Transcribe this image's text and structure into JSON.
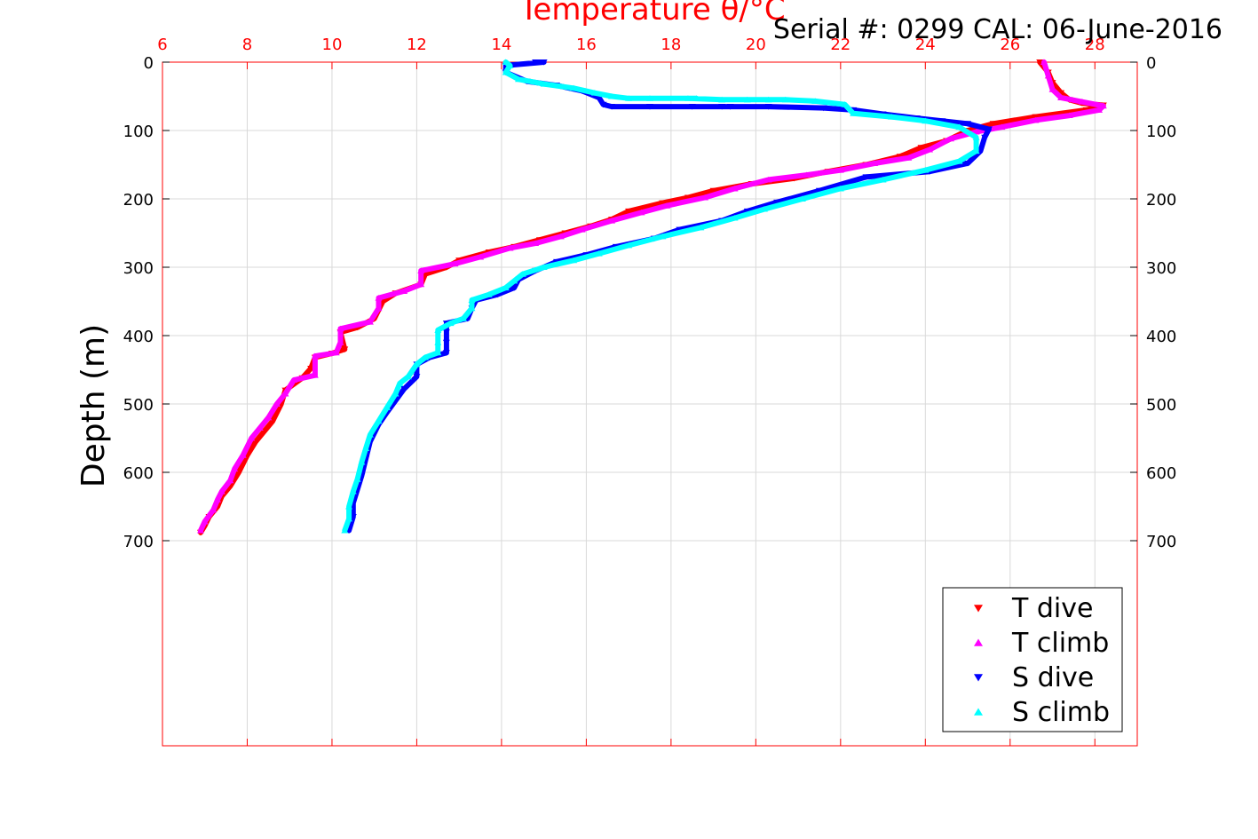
{
  "serial_text": "Serial #: 0299 CAL: 06-June-2016",
  "colors": {
    "temperature_axis": "#ff0000",
    "grid": "#d9d9d9",
    "t_dive": "#ff0000",
    "t_climb": "#ff00ff",
    "s_dive": "#0000ff",
    "s_climb": "#00ffff"
  },
  "chart_data": {
    "type": "scatter",
    "title": "Temperature θ/°C",
    "xlabel": "Temperature θ/°C",
    "ylabel": "Depth (m)",
    "xlim": [
      6,
      29
    ],
    "ylim": [
      0,
      1000
    ],
    "y_reversed": true,
    "x_ticks": [
      "6",
      "8",
      "10",
      "12",
      "14",
      "16",
      "18",
      "20",
      "22",
      "24",
      "26",
      "28"
    ],
    "y_ticks": [
      "0",
      "100",
      "200",
      "300",
      "400",
      "500",
      "600",
      "700"
    ],
    "grid": true,
    "legend_position": "bottom-right",
    "series": [
      {
        "name": "T dive",
        "marker": "triangle-down",
        "points": [
          [
            26.7,
            0
          ],
          [
            26.9,
            15
          ],
          [
            27.0,
            30
          ],
          [
            27.2,
            45
          ],
          [
            27.4,
            55
          ],
          [
            27.7,
            60
          ],
          [
            28.2,
            63
          ],
          [
            27.8,
            70
          ],
          [
            26.6,
            80
          ],
          [
            25.6,
            90
          ],
          [
            25.0,
            100
          ],
          [
            24.5,
            115
          ],
          [
            23.9,
            125
          ],
          [
            23.4,
            138
          ],
          [
            22.6,
            150
          ],
          [
            21.7,
            160
          ],
          [
            20.9,
            170
          ],
          [
            19.9,
            178
          ],
          [
            19.0,
            188
          ],
          [
            18.4,
            198
          ],
          [
            17.8,
            206
          ],
          [
            17.0,
            218
          ],
          [
            16.6,
            230
          ],
          [
            16.1,
            240
          ],
          [
            15.5,
            250
          ],
          [
            14.9,
            260
          ],
          [
            14.3,
            270
          ],
          [
            13.7,
            278
          ],
          [
            13.0,
            290
          ],
          [
            12.7,
            300
          ],
          [
            12.2,
            310
          ],
          [
            12.1,
            325
          ],
          [
            11.5,
            338
          ],
          [
            11.2,
            350
          ],
          [
            11.0,
            375
          ],
          [
            10.6,
            388
          ],
          [
            10.2,
            395
          ],
          [
            10.3,
            420
          ],
          [
            10.0,
            426
          ],
          [
            9.6,
            432
          ],
          [
            9.5,
            448
          ],
          [
            9.3,
            462
          ],
          [
            8.9,
            480
          ],
          [
            8.8,
            500
          ],
          [
            8.6,
            525
          ],
          [
            8.4,
            540
          ],
          [
            8.2,
            555
          ],
          [
            8.0,
            575
          ],
          [
            7.8,
            600
          ],
          [
            7.6,
            620
          ],
          [
            7.4,
            635
          ],
          [
            7.3,
            650
          ],
          [
            7.1,
            665
          ],
          [
            7.0,
            678
          ],
          [
            6.9,
            688
          ]
        ]
      },
      {
        "name": "T climb",
        "marker": "triangle-up",
        "points": [
          [
            6.9,
            685
          ],
          [
            7.0,
            672
          ],
          [
            7.2,
            655
          ],
          [
            7.3,
            640
          ],
          [
            7.4,
            628
          ],
          [
            7.6,
            612
          ],
          [
            7.7,
            595
          ],
          [
            7.9,
            575
          ],
          [
            8.1,
            550
          ],
          [
            8.3,
            535
          ],
          [
            8.5,
            520
          ],
          [
            8.7,
            500
          ],
          [
            8.9,
            485
          ],
          [
            9.1,
            465
          ],
          [
            9.6,
            458
          ],
          [
            9.6,
            430
          ],
          [
            10.1,
            425
          ],
          [
            10.2,
            410
          ],
          [
            10.2,
            390
          ],
          [
            10.9,
            380
          ],
          [
            11.1,
            360
          ],
          [
            11.1,
            345
          ],
          [
            11.7,
            335
          ],
          [
            12.1,
            325
          ],
          [
            12.1,
            305
          ],
          [
            12.9,
            295
          ],
          [
            13.5,
            285
          ],
          [
            14.2,
            272
          ],
          [
            14.8,
            265
          ],
          [
            15.4,
            255
          ],
          [
            15.9,
            245
          ],
          [
            16.6,
            232
          ],
          [
            17.3,
            220
          ],
          [
            17.9,
            210
          ],
          [
            18.8,
            198
          ],
          [
            19.5,
            185
          ],
          [
            20.3,
            172
          ],
          [
            21.2,
            165
          ],
          [
            22.0,
            158
          ],
          [
            22.8,
            148
          ],
          [
            23.6,
            140
          ],
          [
            24.1,
            128
          ],
          [
            24.6,
            112
          ],
          [
            25.2,
            102
          ],
          [
            25.8,
            95
          ],
          [
            26.6,
            85
          ],
          [
            27.4,
            78
          ],
          [
            28.1,
            70
          ],
          [
            28.2,
            64
          ],
          [
            27.7,
            58
          ],
          [
            27.2,
            52
          ],
          [
            27.0,
            40
          ],
          [
            26.9,
            20
          ],
          [
            26.8,
            0
          ]
        ]
      },
      {
        "name": "S dive",
        "marker": "triangle-down",
        "points": [
          [
            14.8,
            0
          ],
          [
            15.0,
            0
          ],
          [
            14.1,
            5
          ],
          [
            14.1,
            15
          ],
          [
            14.6,
            28
          ],
          [
            15.3,
            34
          ],
          [
            15.9,
            42
          ],
          [
            16.3,
            52
          ],
          [
            16.4,
            62
          ],
          [
            16.6,
            65
          ],
          [
            17.5,
            65
          ],
          [
            18.5,
            65
          ],
          [
            19.2,
            65
          ],
          [
            19.4,
            65
          ],
          [
            20.3,
            65
          ],
          [
            21.6,
            67
          ],
          [
            22.3,
            70
          ],
          [
            23.0,
            76
          ],
          [
            23.8,
            82
          ],
          [
            24.4,
            86
          ],
          [
            25.0,
            90
          ],
          [
            25.5,
            98
          ],
          [
            25.4,
            110
          ],
          [
            25.3,
            130
          ],
          [
            25.0,
            148
          ],
          [
            24.1,
            160
          ],
          [
            22.6,
            168
          ],
          [
            21.5,
            188
          ],
          [
            20.5,
            205
          ],
          [
            19.8,
            218
          ],
          [
            19.2,
            232
          ],
          [
            18.2,
            245
          ],
          [
            17.6,
            258
          ],
          [
            16.7,
            270
          ],
          [
            16.0,
            282
          ],
          [
            15.3,
            292
          ],
          [
            14.8,
            305
          ],
          [
            14.4,
            318
          ],
          [
            14.3,
            330
          ],
          [
            13.9,
            340
          ],
          [
            13.4,
            348
          ],
          [
            13.3,
            360
          ],
          [
            13.2,
            375
          ],
          [
            12.7,
            382
          ],
          [
            12.7,
            395
          ],
          [
            12.7,
            410
          ],
          [
            12.7,
            425
          ],
          [
            12.3,
            432
          ],
          [
            12.0,
            442
          ],
          [
            12.0,
            460
          ],
          [
            11.7,
            478
          ],
          [
            11.5,
            495
          ],
          [
            11.3,
            512
          ],
          [
            11.1,
            530
          ],
          [
            10.9,
            555
          ],
          [
            10.8,
            580
          ],
          [
            10.7,
            605
          ],
          [
            10.6,
            625
          ],
          [
            10.5,
            645
          ],
          [
            10.5,
            665
          ],
          [
            10.4,
            685
          ]
        ]
      },
      {
        "name": "S climb",
        "marker": "triangle-up",
        "points": [
          [
            10.3,
            685
          ],
          [
            10.4,
            668
          ],
          [
            10.4,
            650
          ],
          [
            10.5,
            628
          ],
          [
            10.6,
            610
          ],
          [
            10.7,
            585
          ],
          [
            10.8,
            565
          ],
          [
            10.9,
            545
          ],
          [
            11.1,
            525
          ],
          [
            11.3,
            505
          ],
          [
            11.5,
            485
          ],
          [
            11.6,
            470
          ],
          [
            11.8,
            460
          ],
          [
            12.0,
            442
          ],
          [
            12.2,
            432
          ],
          [
            12.5,
            425
          ],
          [
            12.5,
            410
          ],
          [
            12.5,
            392
          ],
          [
            12.8,
            382
          ],
          [
            13.1,
            375
          ],
          [
            13.3,
            360
          ],
          [
            13.3,
            348
          ],
          [
            13.7,
            340
          ],
          [
            14.1,
            330
          ],
          [
            14.3,
            320
          ],
          [
            14.5,
            310
          ],
          [
            15.0,
            300
          ],
          [
            15.7,
            290
          ],
          [
            16.3,
            280
          ],
          [
            17.0,
            268
          ],
          [
            17.8,
            255
          ],
          [
            18.7,
            242
          ],
          [
            19.5,
            228
          ],
          [
            20.2,
            215
          ],
          [
            21.1,
            200
          ],
          [
            22.0,
            185
          ],
          [
            23.0,
            172
          ],
          [
            24.0,
            158
          ],
          [
            24.8,
            145
          ],
          [
            25.2,
            130
          ],
          [
            25.2,
            110
          ],
          [
            24.8,
            95
          ],
          [
            24.0,
            86
          ],
          [
            23.2,
            80
          ],
          [
            22.3,
            75
          ],
          [
            22.1,
            62
          ],
          [
            21.4,
            57
          ],
          [
            20.7,
            55
          ],
          [
            20.3,
            55
          ],
          [
            19.8,
            55
          ],
          [
            19.2,
            55
          ],
          [
            18.4,
            53
          ],
          [
            18.6,
            53
          ],
          [
            17.5,
            53
          ],
          [
            17.0,
            53
          ],
          [
            16.6,
            50
          ],
          [
            16.2,
            45
          ],
          [
            15.7,
            38
          ],
          [
            15.0,
            32
          ],
          [
            14.4,
            25
          ],
          [
            14.1,
            15
          ],
          [
            14.2,
            5
          ],
          [
            14.1,
            0
          ]
        ]
      }
    ]
  }
}
